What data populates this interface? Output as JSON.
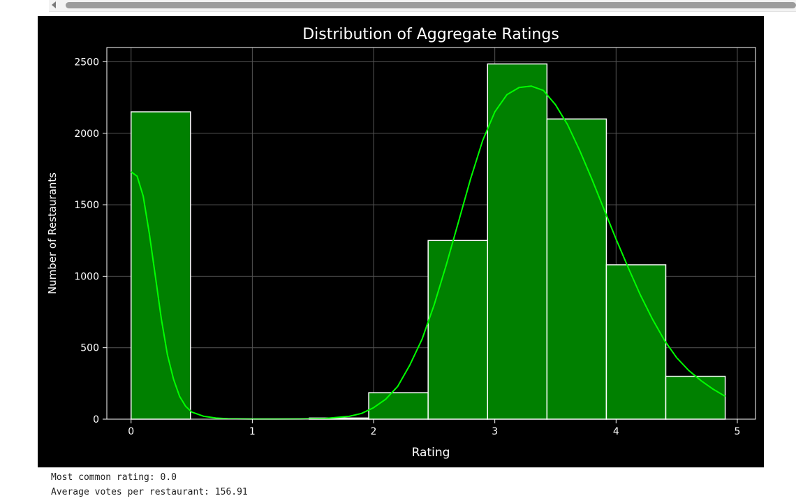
{
  "scrollbar": {
    "left_arrow_icon": "triangle-left-icon"
  },
  "chart_data": {
    "type": "bar",
    "title": "Distribution of Aggregate Ratings",
    "xlabel": "Rating",
    "ylabel": "Number of Restaurants",
    "xlim": [
      -0.2,
      5.15
    ],
    "ylim": [
      0,
      2600
    ],
    "x_ticks": [
      0,
      1,
      2,
      3,
      4,
      5
    ],
    "y_ticks": [
      0,
      500,
      1000,
      1500,
      2000,
      2500
    ],
    "grid": true,
    "bins": [
      {
        "start": 0.0,
        "end": 0.49,
        "value": 2150
      },
      {
        "start": 0.49,
        "end": 0.98,
        "value": 0
      },
      {
        "start": 0.98,
        "end": 1.47,
        "value": 0
      },
      {
        "start": 1.47,
        "end": 1.96,
        "value": 8
      },
      {
        "start": 1.96,
        "end": 2.45,
        "value": 185
      },
      {
        "start": 2.45,
        "end": 2.94,
        "value": 1250
      },
      {
        "start": 2.94,
        "end": 3.43,
        "value": 2485
      },
      {
        "start": 3.43,
        "end": 3.92,
        "value": 2100
      },
      {
        "start": 3.92,
        "end": 4.41,
        "value": 1080
      },
      {
        "start": 4.41,
        "end": 4.9,
        "value": 300
      }
    ],
    "kde": {
      "x": [
        0.0,
        0.05,
        0.1,
        0.15,
        0.2,
        0.25,
        0.3,
        0.35,
        0.4,
        0.45,
        0.5,
        0.6,
        0.7,
        0.8,
        1.0,
        1.2,
        1.4,
        1.6,
        1.8,
        1.9,
        2.0,
        2.1,
        2.2,
        2.3,
        2.4,
        2.5,
        2.6,
        2.7,
        2.8,
        2.9,
        3.0,
        3.1,
        3.2,
        3.3,
        3.4,
        3.5,
        3.6,
        3.7,
        3.8,
        3.9,
        4.0,
        4.1,
        4.2,
        4.3,
        4.4,
        4.5,
        4.6,
        4.7,
        4.8,
        4.9
      ],
      "y": [
        1730,
        1700,
        1560,
        1300,
        1000,
        700,
        450,
        280,
        160,
        90,
        50,
        20,
        8,
        3,
        1,
        1,
        2,
        5,
        20,
        40,
        80,
        140,
        230,
        380,
        560,
        800,
        1080,
        1380,
        1680,
        1950,
        2150,
        2270,
        2320,
        2330,
        2300,
        2200,
        2060,
        1880,
        1680,
        1470,
        1260,
        1060,
        870,
        700,
        550,
        430,
        340,
        270,
        210,
        160
      ]
    },
    "colors": {
      "background": "#000000",
      "bar_fill": "#008000",
      "bar_edge": "#ffffff",
      "kde_line": "#00ff00",
      "grid": "#555555",
      "text": "#ffffff"
    }
  },
  "output": {
    "line1": "Most common rating: 0.0",
    "line2": "Average votes per restaurant: 156.91"
  }
}
